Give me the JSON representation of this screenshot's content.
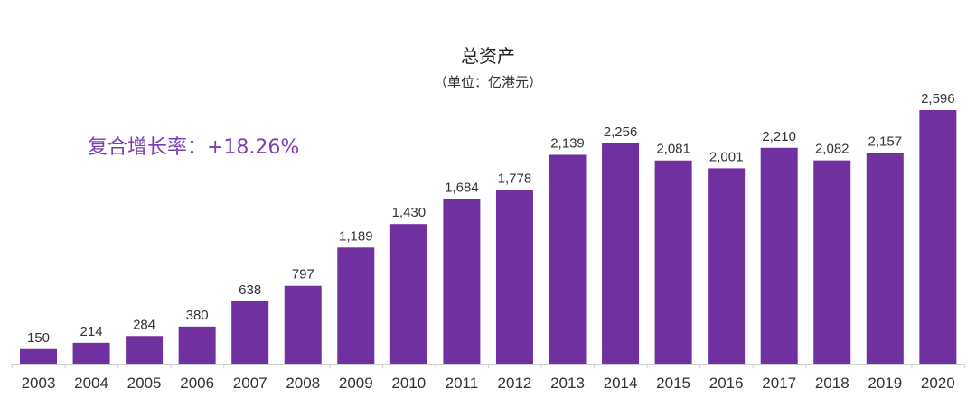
{
  "chart_data": {
    "type": "bar",
    "title": "总资产",
    "subtitle": "（单位：亿港元）",
    "annotation": "复合增长率：+18.26%",
    "categories": [
      "2003",
      "2004",
      "2005",
      "2006",
      "2007",
      "2008",
      "2009",
      "2010",
      "2011",
      "2012",
      "2013",
      "2014",
      "2015",
      "2016",
      "2017",
      "2018",
      "2019",
      "2020"
    ],
    "values": [
      150,
      214,
      284,
      380,
      638,
      797,
      1189,
      1430,
      1684,
      1778,
      2139,
      2256,
      2081,
      2001,
      2210,
      2082,
      2157,
      2596
    ],
    "data_labels": [
      "150",
      "214",
      "284",
      "380",
      "638",
      "797",
      "1,189",
      "1,430",
      "1,684",
      "1,778",
      "2,139",
      "2,256",
      "2,081",
      "2,001",
      "2,210",
      "2,082",
      "2,157",
      "2,596"
    ],
    "ylim": [
      0,
      2596
    ],
    "grid": false,
    "legend": "none",
    "colors": {
      "bar": "#7030A0",
      "annotation": "#7a3fb0"
    }
  }
}
